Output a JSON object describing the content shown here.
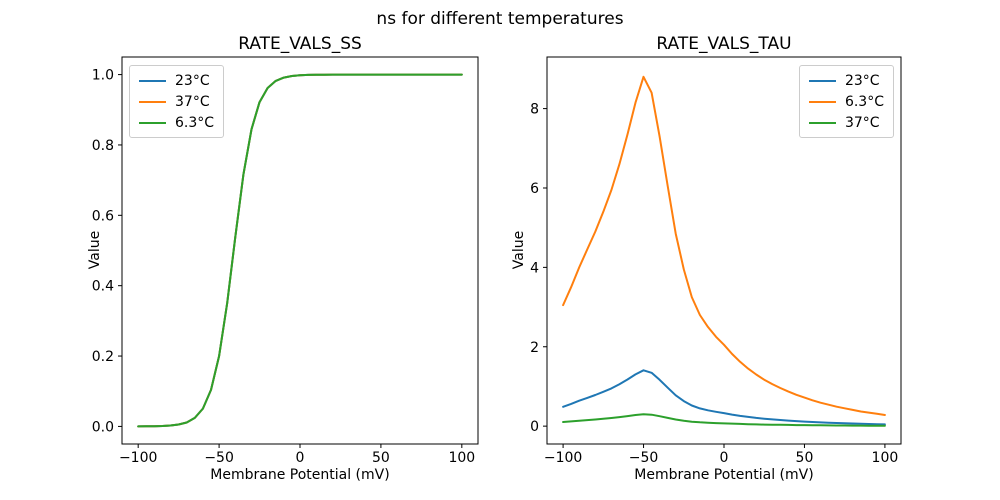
{
  "figure": {
    "suptitle": "ns for different temperatures",
    "background_color": "#ffffff",
    "text_color": "#000000",
    "legend_border_color": "#cccccc"
  },
  "chart_data": [
    {
      "type": "line",
      "title": "RATE_VALS_SS",
      "xlabel": "Membrane Potential (mV)",
      "ylabel": "Value",
      "legend_position": "upper left",
      "grid": false,
      "xlim": [
        -110,
        110
      ],
      "ylim": [
        -0.05,
        1.05
      ],
      "xticks": [
        -100,
        -50,
        0,
        50,
        100
      ],
      "xtick_labels": [
        "−100",
        "−50",
        "0",
        "50",
        "100"
      ],
      "yticks": [
        0.0,
        0.2,
        0.4,
        0.6,
        0.8,
        1.0
      ],
      "ytick_labels": [
        "0.0",
        "0.2",
        "0.4",
        "0.6",
        "0.8",
        "1.0"
      ],
      "x": [
        -100,
        -95,
        -90,
        -85,
        -80,
        -75,
        -70,
        -65,
        -60,
        -55,
        -50,
        -45,
        -40,
        -35,
        -30,
        -25,
        -20,
        -15,
        -10,
        -5,
        0,
        5,
        10,
        15,
        20,
        25,
        30,
        35,
        40,
        45,
        50,
        55,
        60,
        65,
        70,
        75,
        80,
        85,
        90,
        95,
        100
      ],
      "series": [
        {
          "name": "23°C",
          "color": "#1f77b4",
          "values": [
            0.0001,
            0.0002,
            0.0005,
            0.0011,
            0.0025,
            0.0053,
            0.0112,
            0.0243,
            0.0506,
            0.1037,
            0.2002,
            0.3508,
            0.5384,
            0.7157,
            0.8444,
            0.9214,
            0.962,
            0.982,
            0.9915,
            0.996,
            0.9981,
            0.9991,
            0.9996,
            0.9998,
            0.9999,
            1.0,
            1.0,
            1.0,
            1.0,
            1.0,
            1.0,
            1.0,
            1.0,
            1.0,
            1.0,
            1.0,
            1.0,
            1.0,
            1.0,
            1.0,
            1.0
          ]
        },
        {
          "name": "37°C",
          "color": "#ff7f0e",
          "values": [
            0.0001,
            0.0002,
            0.0005,
            0.0011,
            0.0025,
            0.0053,
            0.0112,
            0.0243,
            0.0506,
            0.1037,
            0.2002,
            0.3508,
            0.5384,
            0.7157,
            0.8444,
            0.9214,
            0.962,
            0.982,
            0.9915,
            0.996,
            0.9981,
            0.9991,
            0.9996,
            0.9998,
            0.9999,
            1.0,
            1.0,
            1.0,
            1.0,
            1.0,
            1.0,
            1.0,
            1.0,
            1.0,
            1.0,
            1.0,
            1.0,
            1.0,
            1.0,
            1.0,
            1.0
          ]
        },
        {
          "name": "6.3°C",
          "color": "#2ca02c",
          "values": [
            0.0001,
            0.0002,
            0.0005,
            0.0011,
            0.0025,
            0.0053,
            0.0112,
            0.0243,
            0.0506,
            0.1037,
            0.2002,
            0.3508,
            0.5384,
            0.7157,
            0.8444,
            0.9214,
            0.962,
            0.982,
            0.9915,
            0.996,
            0.9981,
            0.9991,
            0.9996,
            0.9998,
            0.9999,
            1.0,
            1.0,
            1.0,
            1.0,
            1.0,
            1.0,
            1.0,
            1.0,
            1.0,
            1.0,
            1.0,
            1.0,
            1.0,
            1.0,
            1.0,
            1.0
          ]
        }
      ]
    },
    {
      "type": "line",
      "title": "RATE_VALS_TAU",
      "xlabel": "Membrane Potential (mV)",
      "ylabel": "Value",
      "legend_position": "upper right",
      "grid": false,
      "xlim": [
        -110,
        110
      ],
      "ylim": [
        -0.45,
        9.3
      ],
      "xticks": [
        -100,
        -50,
        0,
        50,
        100
      ],
      "xtick_labels": [
        "−100",
        "−50",
        "0",
        "50",
        "100"
      ],
      "yticks": [
        0,
        2,
        4,
        6,
        8
      ],
      "ytick_labels": [
        "0",
        "2",
        "4",
        "6",
        "8"
      ],
      "x": [
        -100,
        -95,
        -90,
        -85,
        -80,
        -75,
        -70,
        -65,
        -60,
        -55,
        -50,
        -45,
        -40,
        -35,
        -30,
        -25,
        -20,
        -15,
        -10,
        -5,
        0,
        5,
        10,
        15,
        20,
        25,
        30,
        35,
        40,
        45,
        50,
        55,
        60,
        65,
        70,
        75,
        80,
        85,
        90,
        95,
        100
      ],
      "series": [
        {
          "name": "23°C",
          "color": "#1f77b4",
          "values": [
            0.488,
            0.56,
            0.64,
            0.712,
            0.784,
            0.864,
            0.952,
            1.056,
            1.176,
            1.304,
            1.408,
            1.344,
            1.168,
            0.968,
            0.776,
            0.632,
            0.52,
            0.448,
            0.4,
            0.36,
            0.328,
            0.291,
            0.259,
            0.232,
            0.208,
            0.187,
            0.17,
            0.154,
            0.139,
            0.126,
            0.115,
            0.104,
            0.094,
            0.086,
            0.078,
            0.072,
            0.066,
            0.059,
            0.054,
            0.05,
            0.045
          ]
        },
        {
          "name": "6.3°C",
          "color": "#ff7f0e",
          "values": [
            3.05,
            3.5,
            4.0,
            4.45,
            4.9,
            5.4,
            5.95,
            6.6,
            7.35,
            8.15,
            8.8,
            8.4,
            7.3,
            6.05,
            4.85,
            3.95,
            3.25,
            2.8,
            2.5,
            2.25,
            2.05,
            1.82,
            1.62,
            1.45,
            1.3,
            1.17,
            1.06,
            0.96,
            0.87,
            0.79,
            0.72,
            0.65,
            0.59,
            0.54,
            0.49,
            0.45,
            0.41,
            0.37,
            0.34,
            0.31,
            0.28
          ]
        },
        {
          "name": "37°C",
          "color": "#2ca02c",
          "values": [
            0.105,
            0.12,
            0.137,
            0.153,
            0.168,
            0.186,
            0.204,
            0.227,
            0.253,
            0.28,
            0.302,
            0.289,
            0.251,
            0.208,
            0.167,
            0.136,
            0.112,
            0.096,
            0.086,
            0.077,
            0.07,
            0.063,
            0.056,
            0.05,
            0.045,
            0.04,
            0.036,
            0.033,
            0.03,
            0.027,
            0.025,
            0.022,
            0.02,
            0.019,
            0.017,
            0.015,
            0.014,
            0.013,
            0.012,
            0.011,
            0.01
          ]
        }
      ]
    }
  ]
}
